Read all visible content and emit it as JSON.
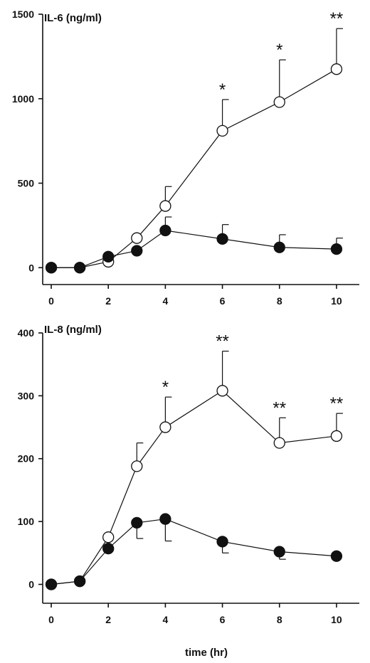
{
  "chart_data": [
    {
      "type": "line",
      "panel_label": "IL-6 (ng/ml)",
      "xlabel": "",
      "x": [
        0,
        1,
        2,
        3,
        4,
        6,
        8,
        10
      ],
      "xticks": [
        0,
        2,
        4,
        6,
        8,
        10
      ],
      "xlim": [
        -0.3,
        10.8
      ],
      "yticks": [
        0,
        500,
        1000,
        1500
      ],
      "ylim": [
        -100,
        1500
      ],
      "series": [
        {
          "marker": "open-circle",
          "values": [
            0,
            0,
            35,
            175,
            365,
            810,
            980,
            1175
          ],
          "error_up": [
            0,
            0,
            0,
            0,
            115,
            185,
            250,
            240
          ]
        },
        {
          "marker": "filled-circle",
          "values": [
            0,
            0,
            65,
            100,
            220,
            170,
            120,
            110
          ],
          "error_up": [
            0,
            0,
            0,
            0,
            80,
            85,
            75,
            65
          ]
        }
      ],
      "significance": [
        {
          "x": 6,
          "label": "*"
        },
        {
          "x": 8,
          "label": "*"
        },
        {
          "x": 10,
          "label": "**"
        }
      ]
    },
    {
      "type": "line",
      "panel_label": "IL-8 (ng/ml)",
      "xlabel": "time (hr)",
      "x": [
        0,
        1,
        2,
        3,
        4,
        6,
        8,
        10
      ],
      "xticks": [
        0,
        2,
        4,
        6,
        8,
        10
      ],
      "xlim": [
        -0.3,
        10.8
      ],
      "yticks": [
        0,
        100,
        200,
        300,
        400
      ],
      "ylim": [
        -30,
        400
      ],
      "series": [
        {
          "marker": "open-circle",
          "values": [
            0,
            5,
            75,
            188,
            250,
            308,
            225,
            236
          ],
          "error_up": [
            0,
            0,
            0,
            37,
            48,
            63,
            40,
            36
          ]
        },
        {
          "marker": "filled-circle",
          "values": [
            0,
            5,
            57,
            98,
            104,
            68,
            52,
            45
          ],
          "error_down": [
            0,
            0,
            0,
            25,
            35,
            18,
            12,
            0
          ]
        }
      ],
      "significance": [
        {
          "x": 4,
          "label": "*"
        },
        {
          "x": 6,
          "label": "**"
        },
        {
          "x": 8,
          "label": "**"
        },
        {
          "x": 10,
          "label": "**"
        }
      ]
    }
  ]
}
